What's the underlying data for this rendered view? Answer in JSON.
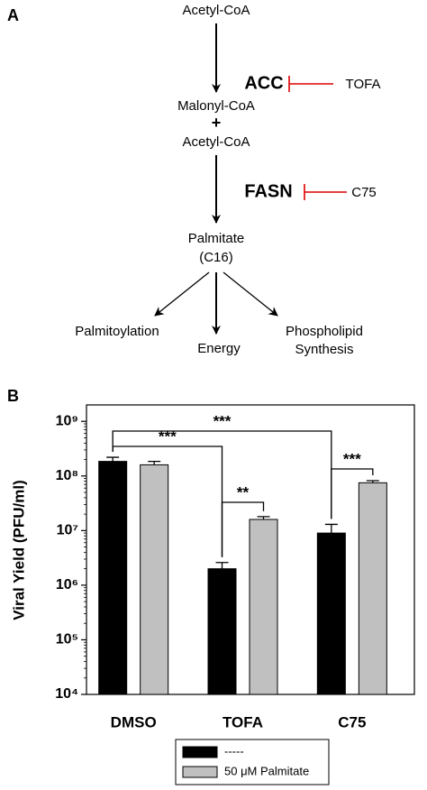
{
  "diagram": {
    "label": "A",
    "nodes": [
      "Acetyl-CoA",
      "ACC",
      "TOFA",
      "Malonyl-CoA",
      "+",
      "Acetyl-CoA",
      "FASN",
      "C75",
      "Palmitate",
      "(C16)",
      "Palmitoylation",
      "Energy",
      "Phospholipid",
      "Synthesis"
    ]
  },
  "chart_data": {
    "type": "bar",
    "panel_label": "B",
    "y_label": "Viral Yield (PFU/ml)",
    "log_scale": true,
    "categories": [
      "DMSO",
      "TOFA",
      "C75"
    ],
    "series": [
      {
        "name": "-----",
        "color": "#000000",
        "values": [
          185000000,
          2000000,
          9000000
        ],
        "errors": [
          35000000,
          600000,
          4000000
        ]
      },
      {
        "name": "50 μM Palmitate",
        "color": "#c0c0c0",
        "values": [
          160000000,
          16000000,
          75000000
        ],
        "errors": [
          25000000,
          2000000,
          7000000
        ]
      }
    ],
    "ylim": [
      10000,
      2000000000
    ],
    "yticks": [
      {
        "value": 10000,
        "label": "10⁴"
      },
      {
        "value": 100000,
        "label": "10⁵"
      },
      {
        "value": 1000000,
        "label": "10⁶"
      },
      {
        "value": 10000000,
        "label": "10⁷"
      },
      {
        "value": 100000000,
        "label": "10⁸"
      },
      {
        "value": 1000000000,
        "label": "10⁹"
      }
    ],
    "annotations": [
      "***",
      "***",
      "**",
      "***"
    ],
    "legend": "bottom"
  }
}
